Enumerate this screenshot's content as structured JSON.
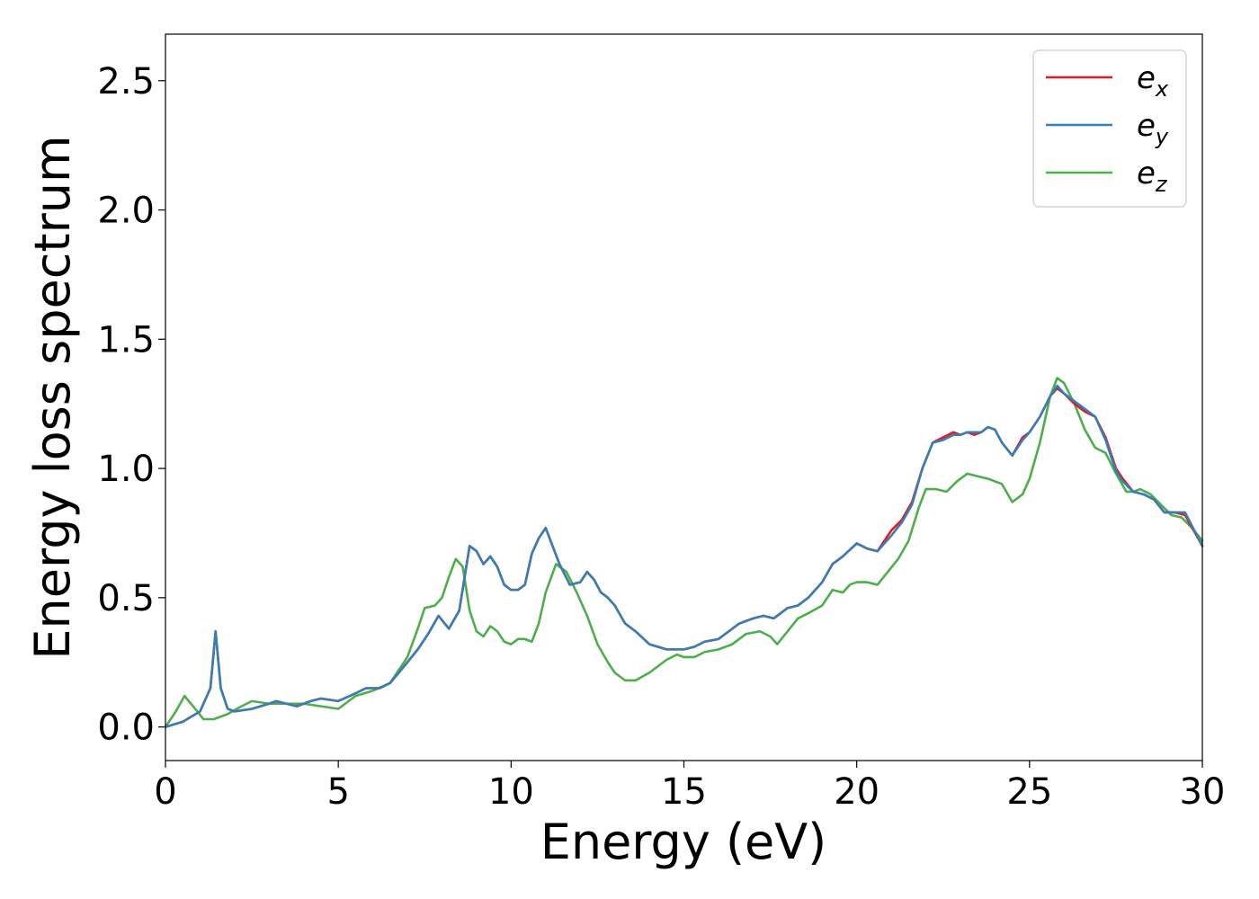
{
  "chart_data": {
    "type": "line",
    "title": "",
    "xlabel": "Energy (eV)",
    "ylabel": "Energy loss spectrum",
    "xlim": [
      0,
      30
    ],
    "ylim": [
      -0.13,
      2.68
    ],
    "xticks": [
      0,
      5,
      10,
      15,
      20,
      25,
      30
    ],
    "xtick_labels": [
      "0",
      "5",
      "10",
      "15",
      "20",
      "25",
      "30"
    ],
    "yticks": [
      0.0,
      0.5,
      1.0,
      1.5,
      2.0,
      2.5
    ],
    "ytick_labels": [
      "0.0",
      "0.5",
      "1.0",
      "1.5",
      "2.0",
      "2.5"
    ],
    "grid": false,
    "legend_position": "top-right",
    "series": [
      {
        "name": "e_x",
        "label_main": "e",
        "label_sub": "x",
        "color": "#e41a1c",
        "x": [
          0,
          0.5,
          1.0,
          1.3,
          1.45,
          1.6,
          1.8,
          2.0,
          2.5,
          3.0,
          3.2,
          3.5,
          3.8,
          4.2,
          4.5,
          5.0,
          5.5,
          5.8,
          6.2,
          6.5,
          7.0,
          7.3,
          7.6,
          7.9,
          8.2,
          8.5,
          8.8,
          9.0,
          9.2,
          9.4,
          9.6,
          9.8,
          10.0,
          10.2,
          10.4,
          10.6,
          10.8,
          11.0,
          11.2,
          11.4,
          11.7,
          12.0,
          12.2,
          12.4,
          12.6,
          12.8,
          13.0,
          13.3,
          13.6,
          14.0,
          14.5,
          15.0,
          15.3,
          15.6,
          16.0,
          16.3,
          16.6,
          17.0,
          17.3,
          17.6,
          18.0,
          18.3,
          18.6,
          19.0,
          19.3,
          19.6,
          20.0,
          20.3,
          20.6,
          20.8,
          21.0,
          21.3,
          21.6,
          21.9,
          22.2,
          22.5,
          22.8,
          23.0,
          23.2,
          23.4,
          23.6,
          23.8,
          24.0,
          24.2,
          24.5,
          24.8,
          25.0,
          25.3,
          25.6,
          25.8,
          26.0,
          26.3,
          26.6,
          26.9,
          27.2,
          27.5,
          27.7,
          28.0,
          28.3,
          28.6,
          28.9,
          29.2,
          29.5,
          30.0
        ],
        "y": [
          0.0,
          0.02,
          0.06,
          0.15,
          0.37,
          0.15,
          0.07,
          0.06,
          0.07,
          0.09,
          0.1,
          0.09,
          0.08,
          0.1,
          0.11,
          0.1,
          0.13,
          0.15,
          0.15,
          0.17,
          0.25,
          0.3,
          0.36,
          0.43,
          0.38,
          0.45,
          0.7,
          0.68,
          0.63,
          0.66,
          0.62,
          0.55,
          0.53,
          0.53,
          0.55,
          0.67,
          0.73,
          0.77,
          0.7,
          0.63,
          0.55,
          0.56,
          0.6,
          0.57,
          0.52,
          0.5,
          0.47,
          0.4,
          0.37,
          0.32,
          0.3,
          0.3,
          0.31,
          0.33,
          0.34,
          0.37,
          0.4,
          0.42,
          0.43,
          0.42,
          0.46,
          0.47,
          0.5,
          0.56,
          0.63,
          0.66,
          0.71,
          0.69,
          0.68,
          0.72,
          0.76,
          0.8,
          0.87,
          1.0,
          1.1,
          1.12,
          1.14,
          1.13,
          1.14,
          1.13,
          1.14,
          1.16,
          1.15,
          1.1,
          1.05,
          1.12,
          1.14,
          1.2,
          1.28,
          1.31,
          1.29,
          1.25,
          1.22,
          1.2,
          1.12,
          1.0,
          0.96,
          0.91,
          0.9,
          0.88,
          0.83,
          0.83,
          0.82,
          0.7
        ]
      },
      {
        "name": "e_y",
        "label_main": "e",
        "label_sub": "y",
        "color": "#377eb8",
        "x": [
          0,
          0.5,
          1.0,
          1.3,
          1.45,
          1.6,
          1.8,
          2.0,
          2.5,
          3.0,
          3.2,
          3.5,
          3.8,
          4.2,
          4.5,
          5.0,
          5.5,
          5.8,
          6.2,
          6.5,
          7.0,
          7.3,
          7.6,
          7.9,
          8.2,
          8.5,
          8.8,
          9.0,
          9.2,
          9.4,
          9.6,
          9.8,
          10.0,
          10.2,
          10.4,
          10.6,
          10.8,
          11.0,
          11.2,
          11.4,
          11.7,
          12.0,
          12.2,
          12.4,
          12.6,
          12.8,
          13.0,
          13.3,
          13.6,
          14.0,
          14.5,
          15.0,
          15.3,
          15.6,
          16.0,
          16.3,
          16.6,
          17.0,
          17.3,
          17.6,
          18.0,
          18.3,
          18.6,
          19.0,
          19.3,
          19.6,
          20.0,
          20.3,
          20.6,
          20.8,
          21.0,
          21.3,
          21.6,
          21.9,
          22.2,
          22.5,
          22.8,
          23.0,
          23.2,
          23.4,
          23.6,
          23.8,
          24.0,
          24.2,
          24.5,
          24.8,
          25.0,
          25.3,
          25.6,
          25.8,
          26.0,
          26.3,
          26.6,
          26.9,
          27.2,
          27.5,
          27.7,
          28.0,
          28.3,
          28.6,
          28.9,
          29.2,
          29.5,
          30.0
        ],
        "y": [
          0.0,
          0.02,
          0.06,
          0.15,
          0.37,
          0.15,
          0.07,
          0.06,
          0.07,
          0.09,
          0.1,
          0.09,
          0.08,
          0.1,
          0.11,
          0.1,
          0.13,
          0.15,
          0.15,
          0.17,
          0.25,
          0.3,
          0.36,
          0.43,
          0.38,
          0.45,
          0.7,
          0.68,
          0.63,
          0.66,
          0.62,
          0.55,
          0.53,
          0.53,
          0.55,
          0.67,
          0.73,
          0.77,
          0.7,
          0.63,
          0.55,
          0.56,
          0.6,
          0.57,
          0.52,
          0.5,
          0.47,
          0.4,
          0.37,
          0.32,
          0.3,
          0.3,
          0.31,
          0.33,
          0.34,
          0.37,
          0.4,
          0.42,
          0.43,
          0.42,
          0.46,
          0.47,
          0.5,
          0.56,
          0.63,
          0.66,
          0.71,
          0.69,
          0.68,
          0.71,
          0.74,
          0.79,
          0.86,
          1.0,
          1.1,
          1.11,
          1.13,
          1.13,
          1.14,
          1.14,
          1.14,
          1.16,
          1.15,
          1.1,
          1.05,
          1.11,
          1.14,
          1.2,
          1.28,
          1.32,
          1.29,
          1.26,
          1.23,
          1.2,
          1.11,
          0.99,
          0.95,
          0.91,
          0.9,
          0.88,
          0.83,
          0.83,
          0.83,
          0.7
        ]
      },
      {
        "name": "e_z",
        "label_main": "e",
        "label_sub": "z",
        "color": "#4daf4a",
        "x": [
          0,
          0.3,
          0.55,
          0.8,
          1.1,
          1.4,
          1.8,
          2.2,
          2.5,
          3.0,
          3.5,
          4.0,
          4.5,
          5.0,
          5.5,
          6.0,
          6.5,
          7.0,
          7.3,
          7.5,
          7.8,
          8.0,
          8.2,
          8.4,
          8.6,
          8.8,
          9.0,
          9.2,
          9.4,
          9.6,
          9.8,
          10.0,
          10.2,
          10.4,
          10.6,
          10.8,
          11.0,
          11.3,
          11.6,
          11.9,
          12.2,
          12.5,
          12.8,
          13.0,
          13.3,
          13.6,
          14.0,
          14.5,
          14.8,
          15.0,
          15.3,
          15.6,
          16.0,
          16.4,
          16.8,
          17.2,
          17.5,
          17.7,
          18.0,
          18.3,
          18.6,
          19.0,
          19.3,
          19.6,
          19.8,
          20.0,
          20.3,
          20.6,
          20.9,
          21.2,
          21.5,
          21.8,
          22.0,
          22.3,
          22.6,
          22.9,
          23.2,
          23.5,
          23.8,
          24.0,
          24.2,
          24.5,
          24.8,
          25.0,
          25.3,
          25.6,
          25.8,
          26.0,
          26.3,
          26.6,
          26.9,
          27.2,
          27.5,
          27.8,
          28.0,
          28.2,
          28.5,
          28.8,
          29.1,
          29.4,
          29.7,
          30.0
        ],
        "y": [
          0.0,
          0.06,
          0.12,
          0.08,
          0.03,
          0.03,
          0.05,
          0.08,
          0.1,
          0.09,
          0.09,
          0.09,
          0.08,
          0.07,
          0.12,
          0.14,
          0.17,
          0.27,
          0.38,
          0.46,
          0.47,
          0.5,
          0.58,
          0.65,
          0.62,
          0.45,
          0.37,
          0.35,
          0.39,
          0.37,
          0.33,
          0.32,
          0.34,
          0.34,
          0.33,
          0.4,
          0.52,
          0.63,
          0.6,
          0.52,
          0.43,
          0.32,
          0.25,
          0.21,
          0.18,
          0.18,
          0.21,
          0.26,
          0.28,
          0.27,
          0.27,
          0.29,
          0.3,
          0.32,
          0.36,
          0.37,
          0.35,
          0.32,
          0.37,
          0.42,
          0.44,
          0.47,
          0.53,
          0.52,
          0.55,
          0.56,
          0.56,
          0.55,
          0.6,
          0.65,
          0.72,
          0.85,
          0.92,
          0.92,
          0.91,
          0.95,
          0.98,
          0.97,
          0.96,
          0.95,
          0.94,
          0.87,
          0.9,
          0.96,
          1.1,
          1.28,
          1.35,
          1.33,
          1.25,
          1.15,
          1.08,
          1.06,
          0.98,
          0.91,
          0.91,
          0.92,
          0.9,
          0.86,
          0.82,
          0.81,
          0.77,
          0.72
        ]
      }
    ]
  }
}
